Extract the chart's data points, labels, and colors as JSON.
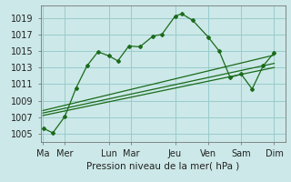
{
  "xlabel": "Pression niveau de la mer( hPa )",
  "xtick_labels": [
    "Ma",
    "Mer",
    "Lun",
    "Mar",
    "Jeu",
    "Ven",
    "Sam",
    "Dim"
  ],
  "xtick_positions": [
    0,
    1,
    3,
    4,
    6,
    7.5,
    9,
    10.5
  ],
  "ylim": [
    1004.0,
    1020.5
  ],
  "xlim": [
    -0.1,
    11.0
  ],
  "yticks": [
    1005,
    1007,
    1009,
    1011,
    1013,
    1015,
    1017,
    1019
  ],
  "background_color": "#cce8e8",
  "grid_color": "#99cccc",
  "line_color": "#1a6b1a",
  "line1_x": [
    0.05,
    0.45,
    1.0,
    1.5,
    2.0,
    2.5,
    3.0,
    3.4,
    3.9,
    4.4,
    5.0,
    5.4,
    6.0,
    6.3,
    6.8,
    7.5,
    8.0,
    8.5,
    9.0,
    9.5,
    10.0,
    10.5
  ],
  "line1_y": [
    1005.6,
    1005.1,
    1007.1,
    1010.5,
    1013.2,
    1014.9,
    1014.4,
    1013.8,
    1015.6,
    1015.5,
    1016.8,
    1017.0,
    1019.2,
    1019.5,
    1018.7,
    1016.7,
    1015.0,
    1011.8,
    1012.2,
    1010.4,
    1013.2,
    1014.8
  ],
  "line2_x": [
    0.0,
    10.5
  ],
  "line2_y": [
    1007.2,
    1013.0
  ],
  "line3_x": [
    0.0,
    10.5
  ],
  "line3_y": [
    1007.5,
    1013.5
  ],
  "line4_x": [
    0.0,
    10.5
  ],
  "line4_y": [
    1007.8,
    1014.5
  ],
  "tick_fontsize": 7,
  "label_fontsize": 7.5
}
